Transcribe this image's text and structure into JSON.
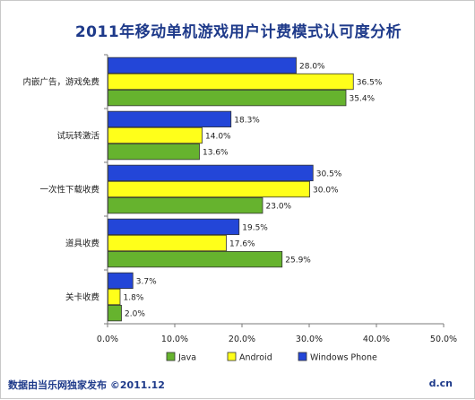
{
  "chart_data": {
    "type": "bar",
    "orientation": "horizontal",
    "title": "2011年移动单机游戏用户计费模式认可度分析",
    "categories": [
      "内嵌广告，游戏免费",
      "试玩转激活",
      "一次性下载收费",
      "道具收费",
      "关卡收费"
    ],
    "series": [
      {
        "name": "Windows Phone",
        "color": "#2346d8",
        "values": [
          28.0,
          18.3,
          30.5,
          19.5,
          3.7
        ]
      },
      {
        "name": "Android",
        "color": "#ffff1a",
        "values": [
          36.5,
          14.0,
          30.0,
          17.6,
          1.8
        ]
      },
      {
        "name": "Java",
        "color": "#66b32e",
        "values": [
          35.4,
          13.6,
          23.0,
          25.9,
          2.0
        ]
      }
    ],
    "legend_order": [
      "Java",
      "Android",
      "Windows Phone"
    ],
    "legend_position": "bottom",
    "xlim": [
      0,
      50
    ],
    "xticks": [
      "0.0%",
      "10.0%",
      "20.0%",
      "30.0%",
      "40.0%",
      "50.0%"
    ],
    "grid": false
  },
  "footer": {
    "source": "数据由当乐网独家发布  ©2011.12",
    "site": "d.cn"
  }
}
